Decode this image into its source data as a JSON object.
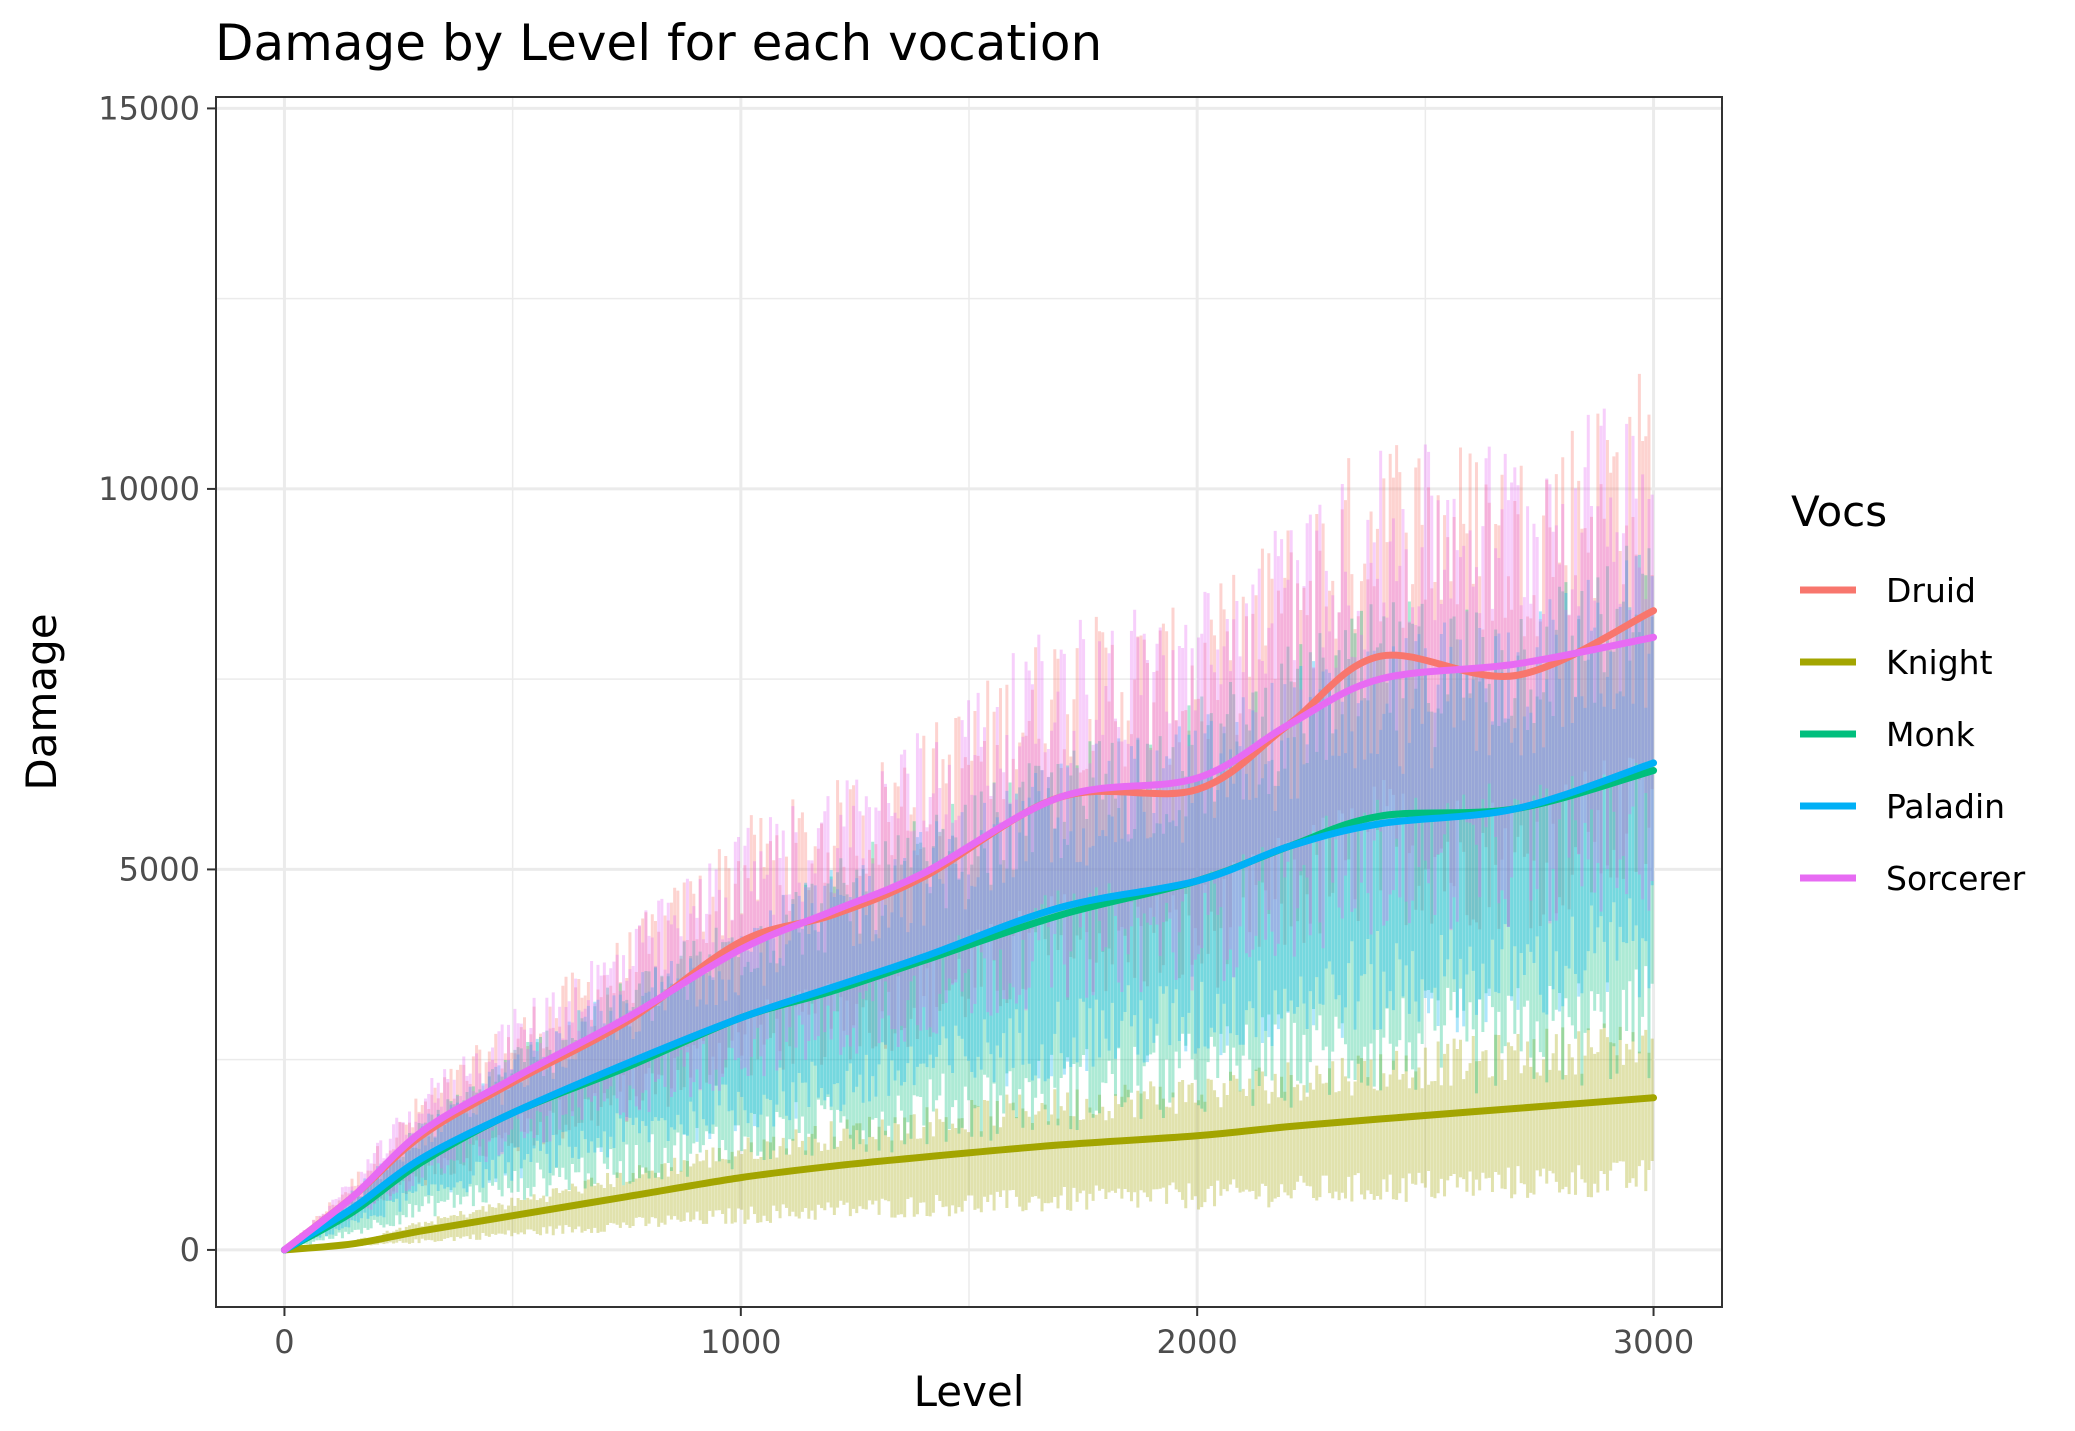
{
  "chart_data": {
    "type": "line",
    "title": "Damage by Level for each vocation",
    "xlabel": "Level",
    "ylabel": "Damage",
    "xlim": [
      -150,
      3150
    ],
    "ylim": [
      -750,
      15150
    ],
    "x_ticks": [
      0,
      1000,
      2000,
      3000
    ],
    "x_tick_labels": [
      "0",
      "1000",
      "2000",
      "3000"
    ],
    "y_ticks": [
      0,
      5000,
      10000,
      15000
    ],
    "y_tick_labels": [
      "0",
      "5000",
      "10000",
      "15000"
    ],
    "grid": true,
    "legend": {
      "title": "Vocs",
      "position": "right"
    },
    "x": [
      0,
      150,
      300,
      500,
      750,
      1000,
      1200,
      1400,
      1700,
      2000,
      2200,
      2400,
      2700,
      3000
    ],
    "series": [
      {
        "name": "Druid",
        "color": "#F8766D",
        "values": [
          0,
          700,
          1500,
          2200,
          3000,
          4050,
          4400,
          4900,
          5950,
          6050,
          6900,
          7800,
          7550,
          8400
        ],
        "band": {
          "low": 0.55,
          "high": 1.3
        }
      },
      {
        "name": "Knight",
        "color": "#A3A500",
        "values": [
          0,
          80,
          250,
          450,
          700,
          950,
          1100,
          1220,
          1380,
          1500,
          1620,
          1720,
          1860,
          2000
        ],
        "band": {
          "low": 0.35,
          "high": 1.45
        }
      },
      {
        "name": "Monk",
        "color": "#00BF7D",
        "values": [
          0,
          500,
          1150,
          1800,
          2400,
          3050,
          3400,
          3800,
          4400,
          4850,
          5300,
          5700,
          5800,
          6300
        ],
        "band": {
          "low": 0.35,
          "high": 1.4
        }
      },
      {
        "name": "Paladin",
        "color": "#00B0F6",
        "values": [
          0,
          550,
          1200,
          1800,
          2450,
          3050,
          3450,
          3850,
          4500,
          4850,
          5300,
          5600,
          5800,
          6400
        ],
        "band": {
          "low": 0.5,
          "high": 1.35
        }
      },
      {
        "name": "Sorcerer",
        "color": "#E76BF3",
        "values": [
          0,
          700,
          1550,
          2250,
          3050,
          3950,
          4450,
          4950,
          5950,
          6200,
          6900,
          7500,
          7700,
          8050
        ],
        "band": {
          "low": 0.55,
          "high": 1.3
        }
      }
    ]
  }
}
